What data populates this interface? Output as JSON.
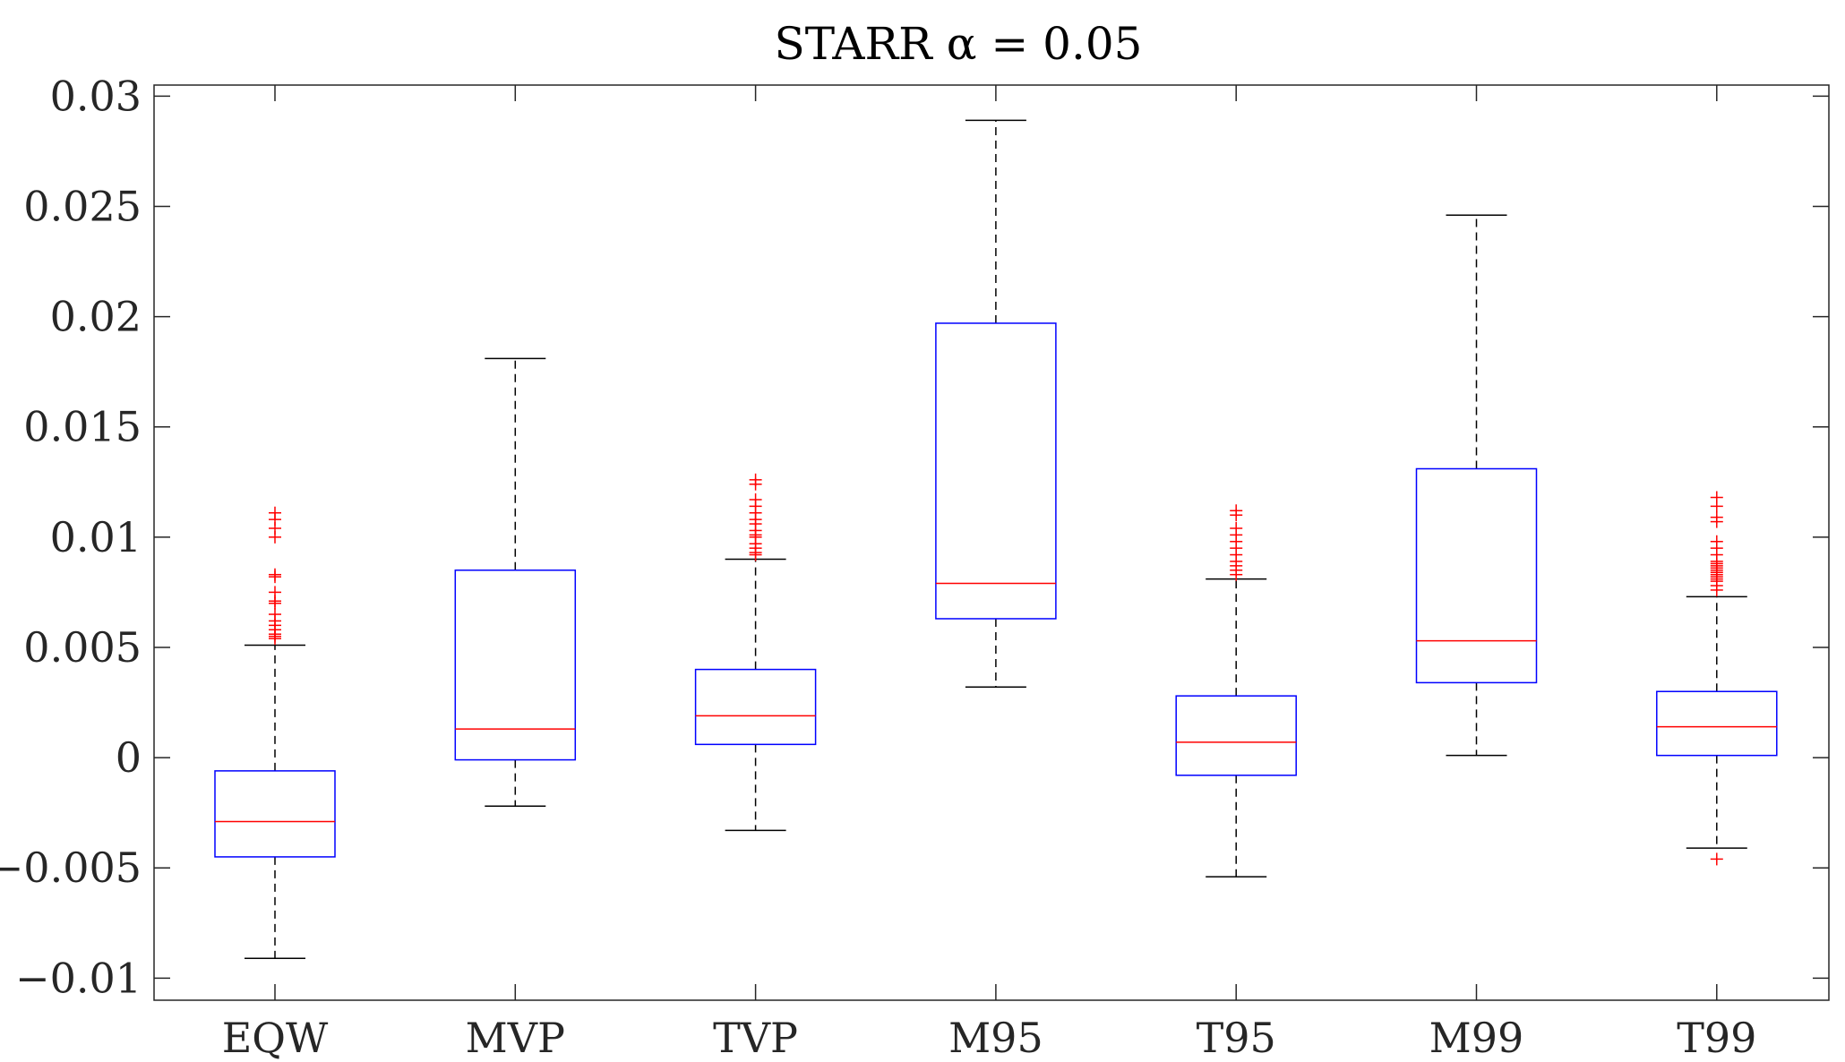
{
  "chart_data": {
    "type": "box",
    "title": "STARR α = 0.05",
    "xlabel": "",
    "ylabel": "",
    "categories": [
      "EQW",
      "MVP",
      "TVP",
      "M95",
      "T95",
      "M99",
      "T99"
    ],
    "ylim": [
      -0.011,
      0.0305
    ],
    "yticks": [
      -0.01,
      -0.005,
      0,
      0.005,
      0.01,
      0.015,
      0.02,
      0.025,
      0.03
    ],
    "ytick_labels": [
      "−0.01",
      "−0.005",
      "0",
      "0.005",
      "0.01",
      "0.015",
      "0.02",
      "0.025",
      "0.03"
    ],
    "grid": false,
    "colors": {
      "box": "#0000ff",
      "median": "#ff0000",
      "whisker": "#000000",
      "outlier": "#ff0000",
      "axis": "#262626"
    },
    "boxes": [
      {
        "label": "EQW",
        "whisker_low": -0.0091,
        "q1": -0.0045,
        "median": -0.0029,
        "q3": -0.0006,
        "whisker_high": 0.0051,
        "outliers": [
          0.0054,
          0.0055,
          0.0056,
          0.0058,
          0.006,
          0.0062,
          0.0065,
          0.007,
          0.0071,
          0.0075,
          0.0082,
          0.0083,
          0.01,
          0.0104,
          0.0108,
          0.0111
        ]
      },
      {
        "label": "MVP",
        "whisker_low": -0.0022,
        "q1": -0.0001,
        "median": 0.0013,
        "q3": 0.0085,
        "whisker_high": 0.0181,
        "outliers": []
      },
      {
        "label": "TVP",
        "whisker_low": -0.0033,
        "q1": 0.0006,
        "median": 0.0019,
        "q3": 0.004,
        "whisker_high": 0.009,
        "outliers": [
          0.0092,
          0.0093,
          0.0095,
          0.0097,
          0.01,
          0.0101,
          0.0103,
          0.0106,
          0.0108,
          0.0111,
          0.0114,
          0.0117,
          0.0124,
          0.0126
        ]
      },
      {
        "label": "M95",
        "whisker_low": 0.0032,
        "q1": 0.0063,
        "median": 0.0079,
        "q3": 0.0197,
        "whisker_high": 0.0289,
        "outliers": []
      },
      {
        "label": "T95",
        "whisker_low": -0.0054,
        "q1": -0.0008,
        "median": 0.0007,
        "q3": 0.0028,
        "whisker_high": 0.0081,
        "outliers": [
          0.0083,
          0.0085,
          0.0087,
          0.0089,
          0.0092,
          0.0095,
          0.0098,
          0.0101,
          0.0104,
          0.011,
          0.0112
        ]
      },
      {
        "label": "M99",
        "whisker_low": 0.0001,
        "q1": 0.0034,
        "median": 0.0053,
        "q3": 0.0131,
        "whisker_high": 0.0246,
        "outliers": []
      },
      {
        "label": "T99",
        "whisker_low": -0.0041,
        "q1": 0.0001,
        "median": 0.0014,
        "q3": 0.003,
        "whisker_high": 0.0073,
        "outliers": [
          -0.0046,
          0.0076,
          0.0078,
          0.008,
          0.0081,
          0.0082,
          0.0083,
          0.0084,
          0.0085,
          0.0086,
          0.0087,
          0.0088,
          0.0089,
          0.0092,
          0.0095,
          0.0098,
          0.0107,
          0.0109,
          0.0114,
          0.0118
        ]
      }
    ]
  }
}
